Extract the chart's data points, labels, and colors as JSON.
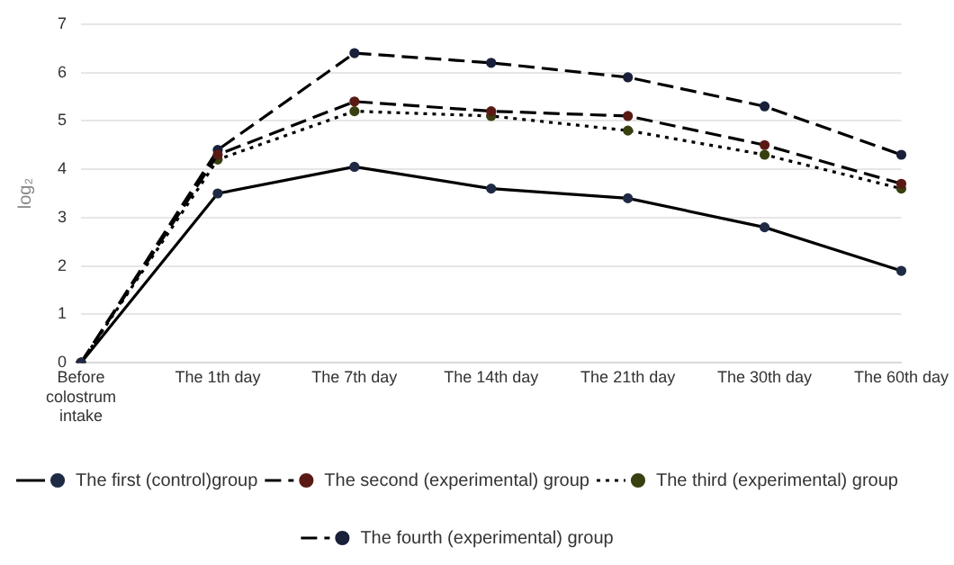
{
  "chart_data": {
    "type": "line",
    "ylabel": "log₂",
    "categories": [
      "Before colostrum intake",
      "The 1th day",
      "The 7th day",
      "The 14th day",
      "The 21th day",
      "The 30th day",
      "The 60th day"
    ],
    "series": [
      {
        "name": "The first (control)group",
        "color": "#1f2a44",
        "line_style": "solid",
        "values": [
          0,
          3.5,
          4.05,
          3.6,
          3.4,
          2.8,
          1.9
        ]
      },
      {
        "name": "The second (experimental) group",
        "color": "#5a1a14",
        "line_style": "dashed",
        "values": [
          0,
          4.3,
          5.4,
          5.2,
          5.1,
          4.5,
          3.7
        ]
      },
      {
        "name": "The third (experimental) group",
        "color": "#3a3f10",
        "line_style": "dotted",
        "values": [
          0,
          4.2,
          5.2,
          5.1,
          4.8,
          4.3,
          3.6
        ]
      },
      {
        "name": "The fourth (experimental) group",
        "color": "#1a1f3a",
        "line_style": "dashed",
        "values": [
          0,
          4.4,
          6.4,
          6.2,
          5.9,
          5.3,
          4.3
        ]
      }
    ],
    "ylim": [
      0,
      7
    ],
    "yticks": [
      0,
      1,
      2,
      3,
      4,
      5,
      6,
      7
    ],
    "grid": "y",
    "legend": "bottom",
    "marker": "circle"
  }
}
